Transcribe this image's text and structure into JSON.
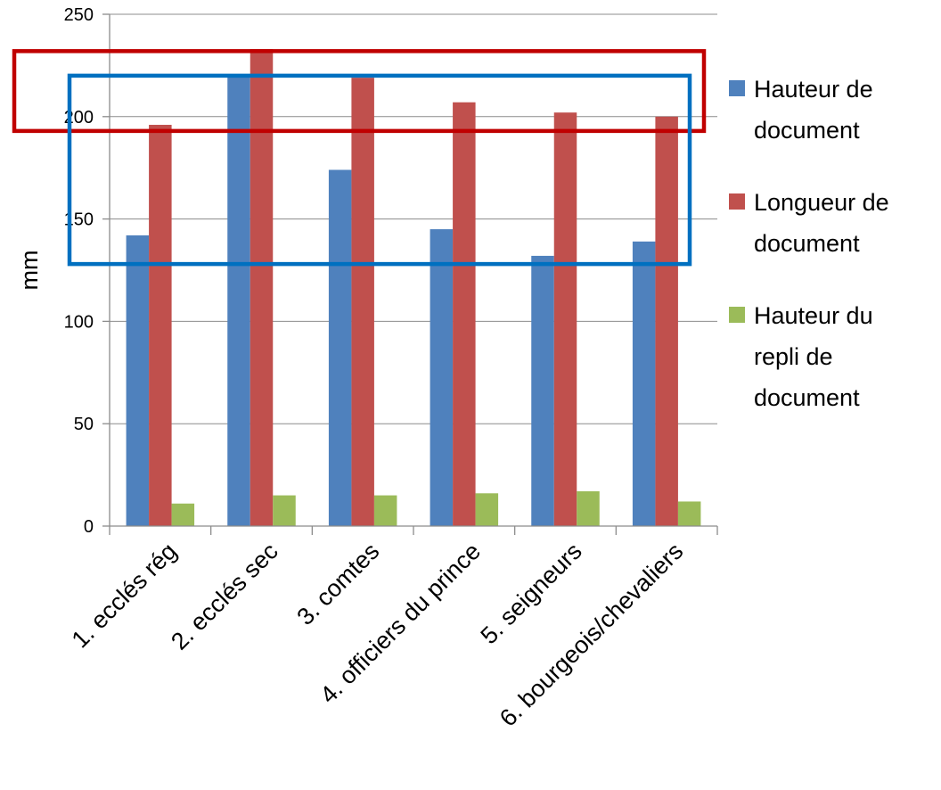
{
  "chart_data": {
    "type": "bar",
    "title": "",
    "xlabel": "",
    "ylabel": "mm",
    "ylim": [
      0,
      250
    ],
    "yticks": [
      0,
      50,
      100,
      150,
      200,
      250
    ],
    "grid": true,
    "legend_position": "right",
    "categories": [
      "1. ecclés rég",
      "2. ecclés sec",
      "3. comtes",
      "4. officiers du prince",
      "5. seigneurs",
      "6. bourgeois/chevaliers"
    ],
    "series": [
      {
        "name": "Hauteur de document",
        "legend_lines": [
          "Hauteur de",
          "document"
        ],
        "color": "#4F81BD",
        "values": [
          142,
          220,
          174,
          145,
          132,
          139
        ]
      },
      {
        "name": "Longueur de document",
        "legend_lines": [
          "Longueur de",
          "document"
        ],
        "color": "#C0504D",
        "values": [
          196,
          233,
          219,
          207,
          202,
          200
        ]
      },
      {
        "name": "Hauteur du repli de document",
        "legend_lines": [
          "Hauteur du",
          "repli de",
          "document"
        ],
        "color": "#9BBB59",
        "values": [
          11,
          15,
          15,
          16,
          17,
          12
        ]
      }
    ],
    "annotations": [
      {
        "shape": "rectangle",
        "color": "#C00000",
        "y_range": [
          193,
          232
        ]
      },
      {
        "shape": "rectangle",
        "color": "#0070C0",
        "y_range": [
          128,
          220
        ]
      }
    ]
  }
}
